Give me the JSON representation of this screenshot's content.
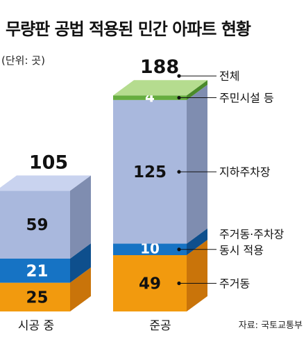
{
  "title": "무량판 공법 적용된 민간 아파트 현황",
  "unit": "(단위: 곳)",
  "source": "자료: 국토교통부",
  "chart_data": {
    "type": "bar",
    "stacked": true,
    "categories": [
      "시공 중",
      "준공"
    ],
    "totals": [
      105,
      188
    ],
    "series": [
      {
        "name": "주거동",
        "values": [
          25,
          49
        ],
        "color": "#f29a0e",
        "side_color": "#c9740a"
      },
      {
        "name": "주거동·주차장 동시 적용",
        "values": [
          21,
          10
        ],
        "color": "#1673c4",
        "side_color": "#0e4f8d"
      },
      {
        "name": "지하주차장",
        "values": [
          59,
          125
        ],
        "color": "#a9b8dd",
        "side_color": "#7f8db0"
      },
      {
        "name": "주민시설 등",
        "values": [
          0,
          4
        ],
        "color": "#66ad3f",
        "side_color": "#4a8a2a"
      }
    ],
    "top_color": "#c9d3ef",
    "top_green_color": "#b5dc8f",
    "legend_labels": {
      "total": "전체",
      "amenity": "주민시설 등",
      "parking": "지하주차장",
      "both_line1": "주거동·주차장",
      "both_line2": "동시 적용",
      "residential": "주거동"
    }
  }
}
